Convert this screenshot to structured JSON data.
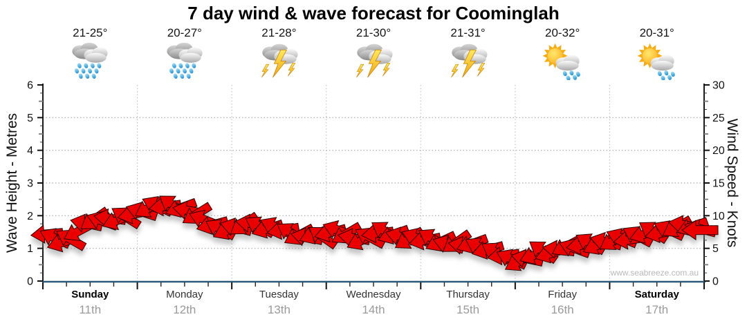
{
  "title": "7 day wind & wave forecast for Coominglah",
  "watermark": "www.seabreeze.com.au",
  "axes": {
    "left_label": "Wave Height - Metres",
    "right_label": "Wind Speed - Knots",
    "left_ticks": [
      "6",
      "5",
      "4",
      "3",
      "2",
      "1",
      "0"
    ],
    "right_ticks": [
      "30",
      "25",
      "20",
      "15",
      "10",
      "5",
      "0"
    ]
  },
  "days": [
    {
      "name": "Sunday",
      "date": "11th",
      "temp": "21-25°",
      "icon": "heavy-rain",
      "weekend": true
    },
    {
      "name": "Monday",
      "date": "12th",
      "temp": "20-27°",
      "icon": "heavy-rain",
      "weekend": false
    },
    {
      "name": "Tuesday",
      "date": "13th",
      "temp": "21-28°",
      "icon": "thunderstorm",
      "weekend": false
    },
    {
      "name": "Wednesday",
      "date": "14th",
      "temp": "21-30°",
      "icon": "thunderstorm",
      "weekend": false
    },
    {
      "name": "Thursday",
      "date": "15th",
      "temp": "21-31°",
      "icon": "thunderstorm",
      "weekend": false
    },
    {
      "name": "Friday",
      "date": "16th",
      "temp": "20-32°",
      "icon": "sun-shower",
      "weekend": false
    },
    {
      "name": "Saturday",
      "date": "17th",
      "temp": "20-31°",
      "icon": "sun-shower",
      "weekend": true
    }
  ],
  "chart_data": {
    "type": "wind-arrow-series",
    "title": "7 day wind & wave forecast for Coominglah",
    "x_categories": [
      "Sunday 11th",
      "Monday 12th",
      "Tuesday 13th",
      "Wednesday 14th",
      "Thursday 15th",
      "Friday 16th",
      "Saturday 17th"
    ],
    "time_step_hours": 2,
    "y_left": {
      "label": "Wave Height - Metres",
      "range": [
        0,
        6
      ],
      "gridlines": [
        1,
        2,
        3,
        4,
        5
      ]
    },
    "y_right": {
      "label": "Wind Speed - Knots",
      "range": [
        0,
        30
      ]
    },
    "grid": {
      "horizontal_dotted": true,
      "vertical_dotted_day_boundaries": true
    },
    "wind_speed_knots": [
      7.2,
      6.6,
      5.9,
      6.4,
      7.6,
      8.8,
      9.4,
      9.2,
      9.6,
      9.3,
      9.8,
      10.2,
      10.6,
      11.2,
      11.5,
      11.4,
      11.6,
      11.2,
      10.8,
      10.2,
      9.4,
      8.6,
      8.0,
      7.8,
      8.2,
      8.6,
      8.8,
      8.4,
      8.0,
      8.3,
      7.8,
      7.4,
      7.0,
      6.7,
      7.1,
      6.8,
      7.4,
      7.8,
      7.2,
      6.6,
      6.2,
      6.7,
      7.3,
      7.6,
      7.1,
      6.8,
      6.4,
      6.6,
      6.2,
      6.5,
      6.0,
      5.6,
      5.9,
      5.4,
      5.7,
      5.2,
      4.8,
      4.4,
      3.9,
      3.4,
      3.0,
      3.4,
      4.0,
      4.6,
      4.2,
      4.8,
      5.3,
      5.0,
      5.5,
      5.8,
      5.5,
      6.0,
      6.2,
      6.6,
      6.3,
      6.9,
      7.2,
      7.6,
      7.3,
      7.8,
      8.2,
      8.6,
      8.3,
      8.0
    ],
    "wind_direction_deg": [
      265,
      295,
      252,
      300,
      242,
      282,
      235,
      290,
      278,
      248,
      302,
      258,
      288,
      240,
      295,
      262,
      305,
      250,
      280,
      238,
      292,
      255,
      298,
      245,
      285,
      235,
      278,
      300,
      252,
      295,
      260,
      302,
      242,
      282,
      248,
      305,
      255,
      290,
      240,
      280,
      245,
      298,
      262,
      303,
      250,
      285,
      238,
      292,
      258,
      300,
      245,
      288,
      235,
      280,
      250,
      298,
      255,
      302,
      262,
      295,
      240,
      282,
      248,
      305,
      252,
      278,
      242,
      290,
      260,
      300,
      245,
      285,
      238,
      292,
      262,
      298,
      252,
      303,
      258,
      295,
      240,
      280,
      250,
      285
    ],
    "overflow_arrow": {
      "knots": 7.8,
      "direction_deg": 270
    },
    "colors": {
      "arrow_fill": "#ea0000",
      "arrow_outline": "#2b0000",
      "bottom_axis": "#2b5876",
      "side_axis": "#1a1a1a",
      "gridline": "#a8a8a8",
      "day_gridline": "#c2c2c2"
    }
  }
}
